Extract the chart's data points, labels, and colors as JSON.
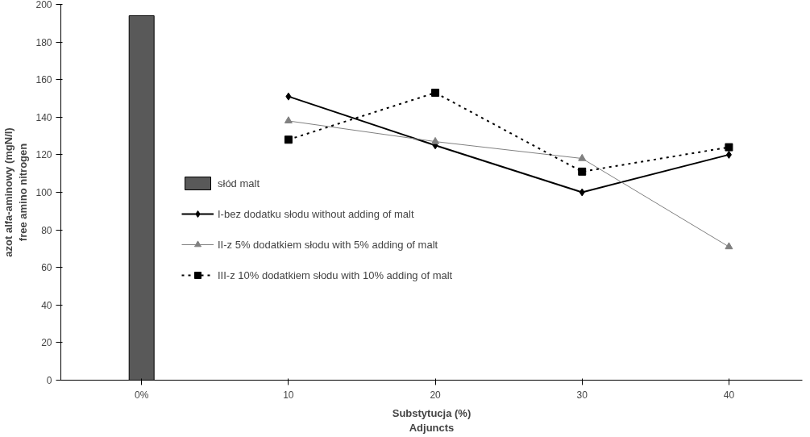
{
  "chart_data": {
    "type": "line",
    "xlabel": "Substytucja (%)\nAdjuncts",
    "ylabel": "azot alfa-aminowy (mgN/l)\nfree amino nitrogen",
    "categories": [
      "0%",
      "10",
      "20",
      "30",
      "40"
    ],
    "ylim": [
      0,
      200
    ],
    "yticks": [
      0,
      20,
      40,
      60,
      80,
      100,
      120,
      140,
      160,
      180,
      200
    ],
    "grid": false,
    "legend": "left",
    "series": [
      {
        "name": "słód malt",
        "type": "bar",
        "color": "#595959",
        "values": [
          194,
          null,
          null,
          null,
          null
        ]
      },
      {
        "name": "I-bez dodatku słodu without adding of malt",
        "color": "#000000",
        "marker": "diamond",
        "line_style": "solid",
        "values": [
          null,
          151,
          125,
          100,
          120
        ]
      },
      {
        "name": "II-z 5% dodatkiem słodu with 5% adding of malt",
        "color": "#808080",
        "marker": "triangle",
        "line_style": "solid",
        "values": [
          null,
          138,
          127,
          118,
          71
        ]
      },
      {
        "name": "III-z 10% dodatkiem słodu with 10% adding of malt",
        "color": "#000000",
        "marker": "square",
        "line_style": "dotted",
        "values": [
          null,
          128,
          153,
          111,
          124
        ]
      }
    ]
  }
}
